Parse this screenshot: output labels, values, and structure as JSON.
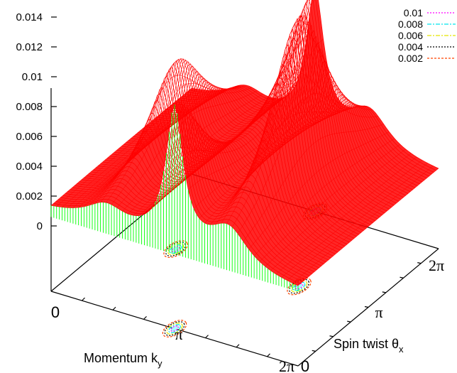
{
  "chart_data": {
    "type": "surface3d",
    "surface_color": "#ff0000",
    "front_face_color": "#00ff00",
    "z_axis": {
      "ticks": [
        "0.014",
        "0.012",
        "0.01",
        "0.008",
        "0.006",
        "0.004",
        "0.002",
        "0"
      ],
      "range": [
        0,
        0.014
      ]
    },
    "x_axis": {
      "title_main": "Momentum k",
      "title_sub": "y",
      "ticks": [
        "0",
        "π",
        "2π"
      ]
    },
    "y_axis": {
      "title_main": "Spin twist θ",
      "title_sub": "x",
      "ticks": [
        "0",
        "π",
        "2π"
      ]
    },
    "contour_legend": {
      "position": "top-right",
      "levels": [
        {
          "label": "0.01",
          "color": "#ff00ff",
          "dash": "2,2"
        },
        {
          "label": "0.008",
          "color": "#00e5ee",
          "dash": "6,2,2,2"
        },
        {
          "label": "0.006",
          "color": "#e5e500",
          "dash": "6,2,2,2"
        },
        {
          "label": "0.004",
          "color": "#000000",
          "dash": "2,2"
        },
        {
          "label": "0.002",
          "color": "#ff4500",
          "dash": "3,2"
        }
      ]
    },
    "peaks": [
      {
        "kx": 0.5,
        "theta": 0.0,
        "height": 0.0088
      },
      {
        "kx": 0.5,
        "theta": 1.0,
        "height": 0.0088
      },
      {
        "kx": 0.72,
        "theta": 0.5,
        "height": 0.0125
      },
      {
        "kx": 0.22,
        "theta": 0.5,
        "height": 0.0069
      }
    ]
  }
}
